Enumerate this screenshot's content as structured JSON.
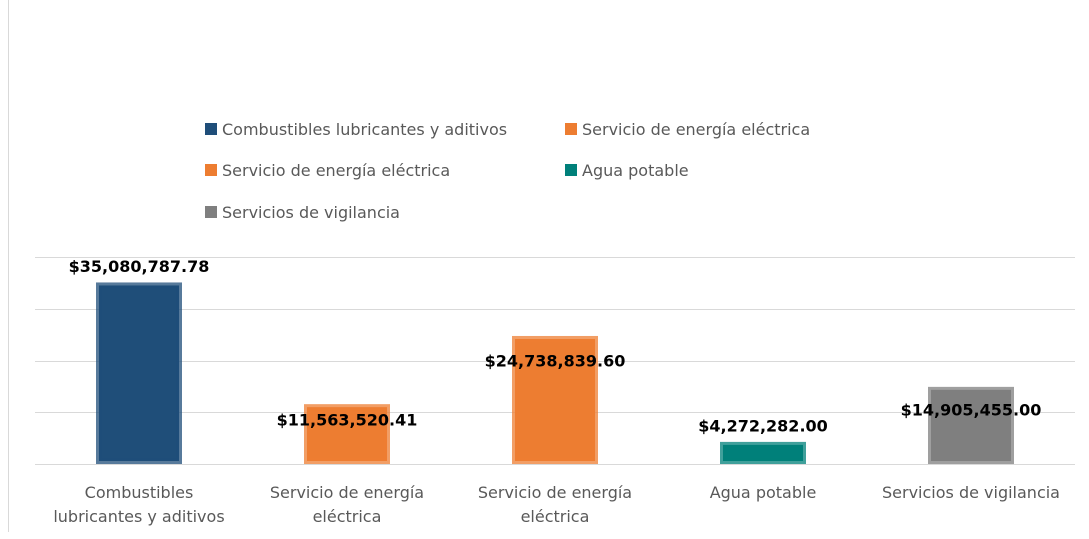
{
  "chart_data": {
    "type": "bar",
    "categories": [
      "Combustibles lubricantes y aditivos",
      "Servicio de energía eléctrica",
      "Servicio de energía eléctrica",
      "Agua potable",
      "Servicios de vigilancia"
    ],
    "values": [
      35080787.78,
      11563520.41,
      24738839.6,
      4272282.0,
      14905455.0
    ],
    "value_labels": [
      "$35,080,787.78",
      "$11,563,520.41",
      "$24,738,839.60",
      "$4,272,282.00",
      "$14,905,455.00"
    ],
    "colors": [
      "#1f4e79",
      "#ed7d31",
      "#ed7d31",
      "#00807a",
      "#7f7f7f"
    ],
    "ylim": [
      0,
      40000000
    ],
    "yticks": [
      0,
      10000000,
      20000000,
      30000000,
      40000000
    ],
    "grid": true
  }
}
